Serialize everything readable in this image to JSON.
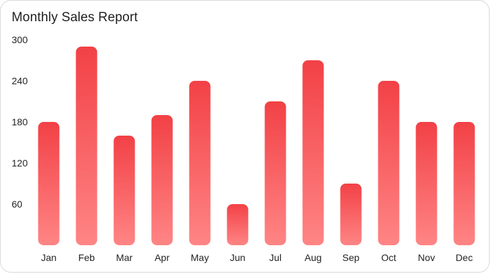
{
  "chart_data": {
    "type": "bar",
    "title": "Monthly Sales Report",
    "categories": [
      "Jan",
      "Feb",
      "Mar",
      "Apr",
      "May",
      "Jun",
      "Jul",
      "Aug",
      "Sep",
      "Oct",
      "Nov",
      "Dec"
    ],
    "values": [
      180,
      290,
      160,
      190,
      240,
      60,
      210,
      270,
      90,
      240,
      180,
      180
    ],
    "yticks": [
      60,
      120,
      180,
      240,
      300
    ],
    "ylim": [
      0,
      300
    ],
    "xlabel": "",
    "ylabel": "",
    "grid": false,
    "colors": {
      "bar_top": "#f24146",
      "bar_bottom": "#ff8585",
      "text": "#222222"
    }
  }
}
